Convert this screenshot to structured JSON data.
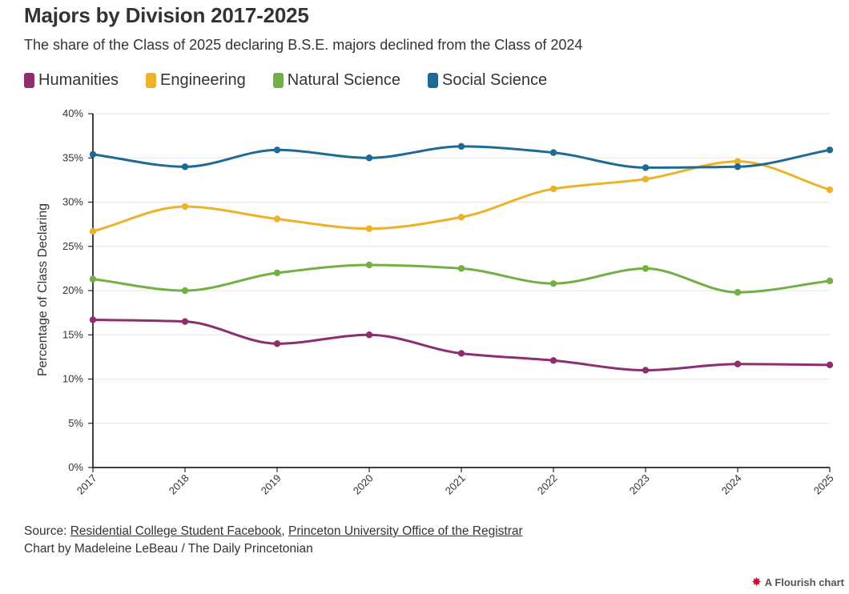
{
  "header": {
    "title": "Majors by Division 2017-2025",
    "subtitle": "The share of the Class of 2025 declaring B.S.E. majors declined from the Class of 2024"
  },
  "colors": {
    "humanities": "#8e2d6f",
    "engineering": "#edb12a",
    "natural_science": "#72b043",
    "social_science": "#1f6a95",
    "grid": "#e6e6e6",
    "axis": "#000000"
  },
  "legend": [
    {
      "label": "Humanities",
      "color": "#8e2d6f"
    },
    {
      "label": "Engineering",
      "color": "#edb12a"
    },
    {
      "label": "Natural Science",
      "color": "#72b043"
    },
    {
      "label": "Social Science",
      "color": "#1f6a95"
    }
  ],
  "chart_data": {
    "type": "line",
    "title": "Majors by Division 2017-2025",
    "xlabel": "",
    "ylabel": "Percentage of Class Declaring",
    "x": [
      "2017",
      "2018",
      "2019",
      "2020",
      "2021",
      "2022",
      "2023",
      "2024",
      "2025"
    ],
    "ylim": [
      0,
      40
    ],
    "yticks": [
      0,
      5,
      10,
      15,
      20,
      25,
      30,
      35,
      40
    ],
    "ytick_labels": [
      "0%",
      "5%",
      "10%",
      "15%",
      "20%",
      "25%",
      "30%",
      "35%",
      "40%"
    ],
    "grid": true,
    "legend_position": "top-left",
    "series": [
      {
        "name": "Humanities",
        "color": "#8e2d6f",
        "values": [
          16.7,
          16.5,
          14.0,
          15.0,
          12.9,
          12.1,
          11.0,
          11.7,
          11.6
        ]
      },
      {
        "name": "Engineering",
        "color": "#edb12a",
        "values": [
          26.7,
          29.5,
          28.1,
          27.0,
          28.3,
          31.5,
          32.6,
          34.6,
          31.4
        ]
      },
      {
        "name": "Natural Science",
        "color": "#72b043",
        "values": [
          21.3,
          20.0,
          22.0,
          22.9,
          22.5,
          20.8,
          22.5,
          19.8,
          21.1
        ]
      },
      {
        "name": "Social Science",
        "color": "#1f6a95",
        "values": [
          35.4,
          34.0,
          35.9,
          35.0,
          36.3,
          35.6,
          33.9,
          34.0,
          35.9
        ]
      }
    ]
  },
  "footer": {
    "source_prefix": "Source: ",
    "source_link_1": "Residential College Student Facebook",
    "source_sep": ", ",
    "source_link_2": "Princeton University Office of the Registrar",
    "credit": "Chart by Madeleine LeBeau / The Daily Princetonian",
    "flourish_label": "A Flourish chart"
  }
}
